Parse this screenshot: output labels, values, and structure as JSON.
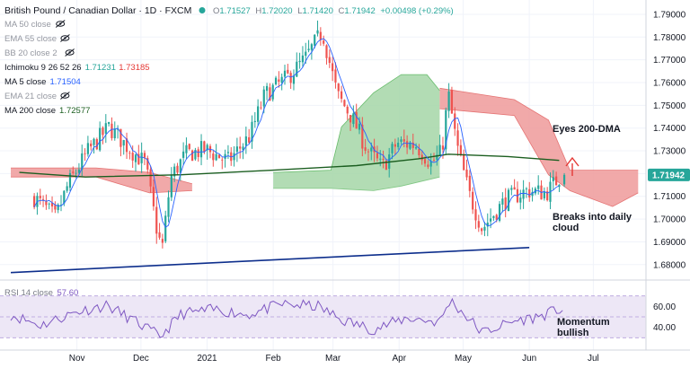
{
  "header": {
    "symbol": "British Pound / Canadian Dollar · 1D · FXCM",
    "ohlc": {
      "o_label": "O",
      "o": "1.71527",
      "h_label": "H",
      "h": "1.72020",
      "l_label": "L",
      "l": "1.71420",
      "c_label": "C",
      "c": "1.71942",
      "change": "+0.00498 (+0.29%)"
    },
    "status_color": "#26a69a"
  },
  "indicators": [
    {
      "label": "MA 50 close",
      "values": [],
      "icon": "eye-off-icon",
      "hidden": true
    },
    {
      "label": "EMA 55 close",
      "values": [],
      "icon": "eye-off-icon",
      "hidden": true
    },
    {
      "label": "BB 20 close 2",
      "values": [],
      "icon": "eye-off-icon",
      "hidden": true
    },
    {
      "label": "Ichimoku 9 26 52 26",
      "values": [
        {
          "v": "1.71231",
          "color": "#26a69a"
        },
        {
          "v": "1.73185",
          "color": "#e53935"
        }
      ],
      "hidden": false
    },
    {
      "label": "MA 5 close",
      "values": [
        {
          "v": "1.71504",
          "color": "#2962ff"
        }
      ],
      "hidden": false
    },
    {
      "label": "EMA 21 close",
      "values": [],
      "icon": "eye-off-icon",
      "hidden": true
    },
    {
      "label": "MA 200 close",
      "values": [
        {
          "v": "1.72577",
          "color": "#1b5e20"
        }
      ],
      "hidden": false
    }
  ],
  "annotations": {
    "eyes_200dma": "Eyes 200-DMA",
    "breaks_cloud_line1": "Breaks into daily",
    "breaks_cloud_line2": "cloud",
    "momentum_line1": "Momentum",
    "momentum_line2": "bullish"
  },
  "colors": {
    "up": "#26a69a",
    "down": "#ef5350",
    "cloud_bull": "#a5d6a7",
    "cloud_bear": "#ef9a9a",
    "ma200": "#1b5e20",
    "ma5": "#2962ff",
    "trendline": "#0d2e8c",
    "rsi_line": "#7e57c2",
    "rsi_band": "#ede7f6",
    "arrow": "#e53935",
    "price_tag": "#26a69a"
  },
  "chart_data": [
    {
      "type": "candlestick",
      "title": "British Pound / Canadian Dollar",
      "x_ticks": [
        "Nov",
        "Dec",
        "2021",
        "Feb",
        "Mar",
        "Apr",
        "May",
        "Jun",
        "Jul"
      ],
      "y_ticks": [
        "1.79000",
        "1.78000",
        "1.77000",
        "1.76000",
        "1.75000",
        "1.74000",
        "1.73000",
        "1.72000",
        "1.71000",
        "1.70000",
        "1.69000",
        "1.68000"
      ],
      "ylim": [
        1.674,
        1.7955
      ],
      "current_price": "1.71942",
      "price_path": [
        [
          "2020-10-12",
          1.7095
        ],
        [
          "2020-10-22",
          1.7005
        ],
        [
          "2020-10-28",
          1.7155
        ],
        [
          "2020-11-06",
          1.7295
        ],
        [
          "2020-11-16",
          1.7405
        ],
        [
          "2020-11-26",
          1.7305
        ],
        [
          "2020-12-03",
          1.7245
        ],
        [
          "2020-12-09",
          1.6925
        ],
        [
          "2020-12-11",
          1.6875
        ],
        [
          "2020-12-15",
          1.7185
        ],
        [
          "2020-12-22",
          1.7285
        ],
        [
          "2020-12-31",
          1.7305
        ],
        [
          "2021-01-11",
          1.7255
        ],
        [
          "2021-01-21",
          1.7365
        ],
        [
          "2021-01-28",
          1.7545
        ],
        [
          "2021-02-08",
          1.7625
        ],
        [
          "2021-02-16",
          1.7705
        ],
        [
          "2021-02-24",
          1.7825
        ],
        [
          "2021-03-03",
          1.7545
        ],
        [
          "2021-03-10",
          1.7445
        ],
        [
          "2021-03-17",
          1.7305
        ],
        [
          "2021-03-24",
          1.7225
        ],
        [
          "2021-03-31",
          1.7335
        ],
        [
          "2021-04-09",
          1.7325
        ],
        [
          "2021-04-16",
          1.7245
        ],
        [
          "2021-04-21",
          1.7295
        ],
        [
          "2021-04-24",
          1.7555
        ],
        [
          "2021-04-28",
          1.7325
        ],
        [
          "2021-05-04",
          1.7105
        ],
        [
          "2021-05-10",
          1.6955
        ],
        [
          "2021-05-12",
          1.6985
        ],
        [
          "2021-05-21",
          1.7085
        ],
        [
          "2021-05-31",
          1.7125
        ],
        [
          "2021-06-09",
          1.7115
        ],
        [
          "2021-06-16",
          1.7194
        ]
      ],
      "ma200_path": [
        [
          "2020-10-05",
          1.7205
        ],
        [
          "2020-11-05",
          1.7185
        ],
        [
          "2020-12-20",
          1.7195
        ],
        [
          "2021-02-01",
          1.7215
        ],
        [
          "2021-03-12",
          1.7235
        ],
        [
          "2021-04-10",
          1.7265
        ],
        [
          "2021-04-24",
          1.7285
        ],
        [
          "2021-05-22",
          1.7275
        ],
        [
          "2021-06-15",
          1.7258
        ]
      ],
      "trendline": [
        [
          "2020-10-01",
          1.6765
        ],
        [
          "2021-06-01",
          1.6875
        ]
      ],
      "cloud": [
        {
          "color": "bear",
          "upper": [
            [
              "2020-10-01",
              1.7225
            ],
            [
              "2020-11-10",
              1.7225
            ],
            [
              "2020-12-05",
              1.7205
            ],
            [
              "2020-12-25",
              1.7155
            ]
          ],
          "lower": [
            [
              "2020-10-01",
              1.7185
            ],
            [
              "2020-11-10",
              1.7185
            ],
            [
              "2020-12-05",
              1.7115
            ],
            [
              "2020-12-25",
              1.7125
            ]
          ]
        },
        {
          "color": "bull",
          "upper": [
            [
              "2021-02-01",
              1.7205
            ],
            [
              "2021-02-28",
              1.7215
            ],
            [
              "2021-03-05",
              1.7405
            ],
            [
              "2021-03-20",
              1.7555
            ],
            [
              "2021-04-02",
              1.7635
            ],
            [
              "2021-04-14",
              1.7635
            ],
            [
              "2021-04-20",
              1.7565
            ]
          ],
          "lower": [
            [
              "2021-02-01",
              1.7135
            ],
            [
              "2021-02-28",
              1.7135
            ],
            [
              "2021-03-20",
              1.7125
            ],
            [
              "2021-04-02",
              1.7145
            ],
            [
              "2021-04-20",
              1.7185
            ]
          ]
        },
        {
          "color": "bear",
          "upper": [
            [
              "2021-04-20",
              1.7575
            ],
            [
              "2021-05-25",
              1.7525
            ],
            [
              "2021-06-10",
              1.7435
            ],
            [
              "2021-06-20",
              1.7215
            ],
            [
              "2021-07-22",
              1.7215
            ]
          ],
          "lower": [
            [
              "2021-04-20",
              1.7485
            ],
            [
              "2021-05-25",
              1.7455
            ],
            [
              "2021-06-10",
              1.7195
            ],
            [
              "2021-06-20",
              1.7125
            ],
            [
              "2021-07-10",
              1.7055
            ],
            [
              "2021-07-22",
              1.7115
            ]
          ]
        }
      ]
    },
    {
      "type": "line",
      "title": "RSI 14 close",
      "current_value": "57.60",
      "y_ticks": [
        "60.00",
        "40.00"
      ],
      "ylim": [
        20,
        80
      ],
      "band": [
        30,
        70
      ],
      "rsi_path": [
        [
          "2020-10-01",
          52
        ],
        [
          "2020-10-15",
          42
        ],
        [
          "2020-11-01",
          55
        ],
        [
          "2020-11-15",
          61
        ],
        [
          "2020-11-28",
          46
        ],
        [
          "2020-12-10",
          31
        ],
        [
          "2020-12-20",
          53
        ],
        [
          "2021-01-05",
          57
        ],
        [
          "2021-01-20",
          52
        ],
        [
          "2021-02-05",
          62
        ],
        [
          "2021-02-22",
          60
        ],
        [
          "2021-03-05",
          47
        ],
        [
          "2021-03-20",
          38
        ],
        [
          "2021-04-05",
          49
        ],
        [
          "2021-04-20",
          45
        ],
        [
          "2021-04-25",
          66
        ],
        [
          "2021-05-10",
          35
        ],
        [
          "2021-05-25",
          46
        ],
        [
          "2021-06-05",
          50
        ],
        [
          "2021-06-16",
          57.6
        ]
      ]
    }
  ]
}
